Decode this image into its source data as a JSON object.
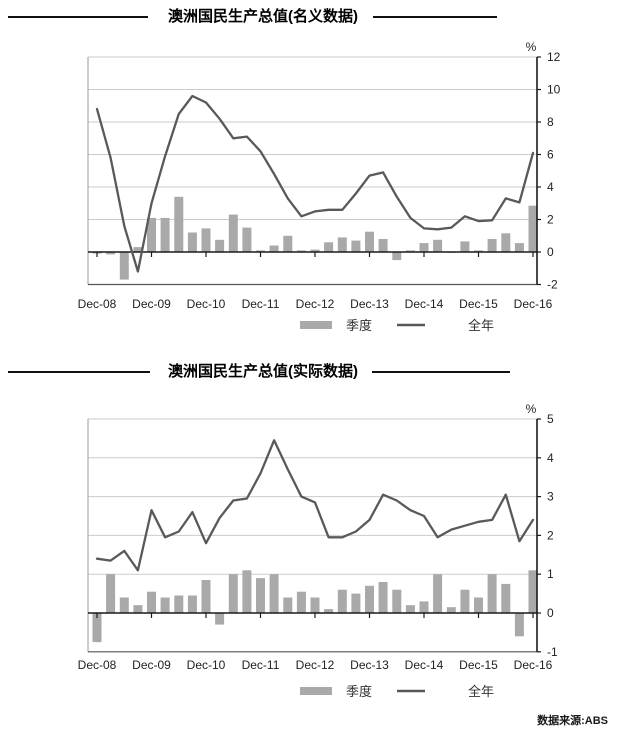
{
  "source_note": "数据来源:ABS",
  "colors": {
    "bar": "#a9a9a9",
    "line": "#595959",
    "grid": "#cbcbcb",
    "axis": "#1a1a1a",
    "border": "#555555"
  },
  "chart_data": [
    {
      "type": "bar",
      "subtype": "combo_bar_line",
      "title": "澳洲国民生产总值(名义数据)",
      "unit": "%",
      "ylim": [
        -2,
        12
      ],
      "yticks": [
        -2,
        0,
        2,
        4,
        6,
        8,
        10,
        12
      ],
      "grid": true,
      "legend_position": "bottom",
      "x_tick_labels": [
        "Dec-08",
        "Dec-09",
        "Dec-10",
        "Dec-11",
        "Dec-12",
        "Dec-13",
        "Dec-14",
        "Dec-15",
        "Dec-16"
      ],
      "categories": [
        "Dec-08",
        "Mar-09",
        "Jun-09",
        "Sep-09",
        "Dec-09",
        "Mar-10",
        "Jun-10",
        "Sep-10",
        "Dec-10",
        "Mar-11",
        "Jun-11",
        "Sep-11",
        "Dec-11",
        "Mar-12",
        "Jun-12",
        "Sep-12",
        "Dec-12",
        "Mar-13",
        "Jun-13",
        "Sep-13",
        "Dec-13",
        "Mar-14",
        "Jun-14",
        "Sep-14",
        "Dec-14",
        "Mar-15",
        "Jun-15",
        "Sep-15",
        "Dec-15",
        "Mar-16",
        "Jun-16",
        "Sep-16",
        "Dec-16"
      ],
      "series": [
        {
          "name": "季度",
          "type": "bar",
          "values": [
            -0.1,
            -0.15,
            -1.7,
            0.3,
            2.1,
            2.1,
            3.4,
            1.2,
            1.45,
            0.75,
            2.3,
            1.5,
            0.1,
            0.4,
            1.0,
            0.1,
            0.15,
            0.6,
            0.9,
            0.7,
            1.25,
            0.8,
            -0.5,
            0.1,
            0.55,
            0.75,
            -0.05,
            0.65,
            0.1,
            0.8,
            1.15,
            0.55,
            2.85
          ]
        },
        {
          "name": "全年",
          "type": "line",
          "values": [
            8.8,
            5.8,
            1.6,
            -1.2,
            3.0,
            5.9,
            8.5,
            9.6,
            9.2,
            8.2,
            7.0,
            7.1,
            6.2,
            4.8,
            3.3,
            2.2,
            2.5,
            2.6,
            2.6,
            3.6,
            4.7,
            4.9,
            3.4,
            2.1,
            1.45,
            1.4,
            1.5,
            2.2,
            1.9,
            1.95,
            3.3,
            3.05,
            6.1
          ]
        }
      ]
    },
    {
      "type": "bar",
      "subtype": "combo_bar_line",
      "title": "澳洲国民生产总值(实际数据)",
      "unit": "%",
      "ylim": [
        -1,
        5
      ],
      "yticks": [
        -1,
        0,
        1,
        2,
        3,
        4,
        5
      ],
      "grid": true,
      "legend_position": "bottom",
      "x_tick_labels": [
        "Dec-08",
        "Dec-09",
        "Dec-10",
        "Dec-11",
        "Dec-12",
        "Dec-13",
        "Dec-14",
        "Dec-15",
        "Dec-16"
      ],
      "categories": [
        "Dec-08",
        "Mar-09",
        "Jun-09",
        "Sep-09",
        "Dec-09",
        "Mar-10",
        "Jun-10",
        "Sep-10",
        "Dec-10",
        "Mar-11",
        "Jun-11",
        "Sep-11",
        "Dec-11",
        "Mar-12",
        "Jun-12",
        "Sep-12",
        "Dec-12",
        "Mar-13",
        "Jun-13",
        "Sep-13",
        "Dec-13",
        "Mar-14",
        "Jun-14",
        "Sep-14",
        "Dec-14",
        "Mar-15",
        "Jun-15",
        "Sep-15",
        "Dec-15",
        "Mar-16",
        "Jun-16",
        "Sep-16",
        "Dec-16"
      ],
      "series": [
        {
          "name": "季度",
          "type": "bar",
          "values": [
            -0.75,
            1.0,
            0.4,
            0.2,
            0.55,
            0.4,
            0.45,
            0.45,
            0.85,
            -0.3,
            1.0,
            1.1,
            0.9,
            1.0,
            0.4,
            0.55,
            0.4,
            0.1,
            0.6,
            0.5,
            0.7,
            0.8,
            0.6,
            0.2,
            0.3,
            1.0,
            0.15,
            0.6,
            0.4,
            1.0,
            0.75,
            -0.6,
            1.1
          ]
        },
        {
          "name": "全年",
          "type": "line",
          "values": [
            1.4,
            1.35,
            1.6,
            1.1,
            2.65,
            1.95,
            2.1,
            2.6,
            1.8,
            2.45,
            2.9,
            2.95,
            3.6,
            4.45,
            3.7,
            3.0,
            2.85,
            1.95,
            1.95,
            2.1,
            2.4,
            3.05,
            2.9,
            2.65,
            2.5,
            1.95,
            2.15,
            2.25,
            2.35,
            2.4,
            3.05,
            1.85,
            2.4
          ]
        }
      ]
    }
  ]
}
